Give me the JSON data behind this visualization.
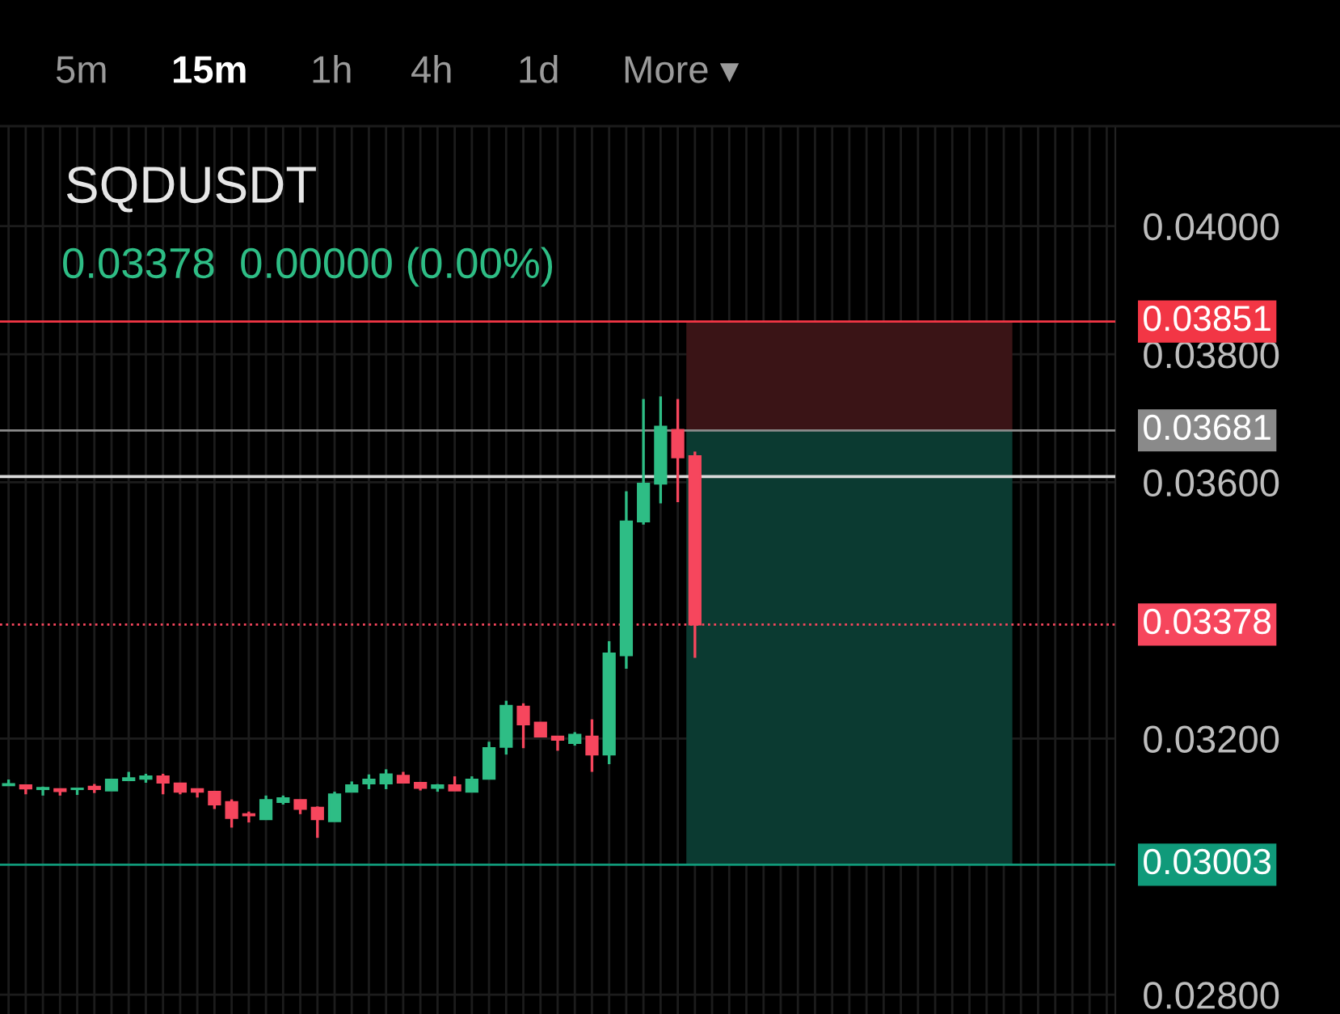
{
  "chart_data": {
    "type": "candlestick",
    "title": "SQDUSDT",
    "subtitle": "0.03378  0.00000 (0.00%)",
    "annotations": [
      "5m",
      "15m",
      "1h",
      "4h",
      "1d",
      "More ▾"
    ],
    "categories": [
      null,
      null,
      null,
      null,
      null,
      null,
      null,
      null,
      null,
      null,
      null,
      null,
      null,
      null,
      null,
      null,
      null,
      null,
      null,
      null,
      null,
      null,
      null,
      null,
      null,
      null,
      null,
      null,
      null,
      null,
      null,
      null,
      null,
      null,
      null,
      null,
      null,
      null,
      null,
      null,
      null,
      null,
      null,
      null,
      null,
      null,
      null,
      null,
      null,
      null,
      null,
      null,
      null,
      null,
      null,
      null,
      null,
      null,
      null,
      null,
      null,
      null,
      null,
      null,
      null
    ],
    "ohlc": [
      [
        0.03127,
        0.03136,
        0.03126,
        0.03129
      ],
      [
        0.03127,
        0.03128,
        0.03113,
        0.03122
      ],
      [
        0.03121,
        0.03125,
        0.03111,
        0.03123
      ],
      [
        0.03121,
        0.03121,
        0.03111,
        0.03118
      ],
      [
        0.03121,
        0.03122,
        0.03112,
        0.03122
      ],
      [
        0.03125,
        0.03129,
        0.03115,
        0.03121
      ],
      [
        0.03119,
        0.03136,
        0.03119,
        0.03136
      ],
      [
        0.03135,
        0.03148,
        0.03135,
        0.03138
      ],
      [
        0.03137,
        0.03145,
        0.03131,
        0.03141
      ],
      [
        0.03141,
        0.03145,
        0.03113,
        0.03131
      ],
      [
        0.0313,
        0.0313,
        0.03113,
        0.03117
      ],
      [
        0.03121,
        0.03122,
        0.03108,
        0.03117
      ],
      [
        0.03117,
        0.03117,
        0.0309,
        0.03097
      ],
      [
        0.03101,
        0.03105,
        0.03061,
        0.03076
      ],
      [
        0.03082,
        0.03086,
        0.03069,
        0.0308
      ],
      [
        0.03074,
        0.03111,
        0.03074,
        0.03104
      ],
      [
        0.03101,
        0.03111,
        0.03097,
        0.03107
      ],
      [
        0.03104,
        0.03104,
        0.03082,
        0.0309
      ],
      [
        0.03092,
        0.03094,
        0.03045,
        0.03074
      ],
      [
        0.03071,
        0.03117,
        0.03071,
        0.03113
      ],
      [
        0.03117,
        0.03133,
        0.03117,
        0.03127
      ],
      [
        0.0313,
        0.03144,
        0.03121,
        0.03136
      ],
      [
        0.0313,
        0.03152,
        0.03121,
        0.03144
      ],
      [
        0.03142,
        0.03148,
        0.03131,
        0.03131
      ],
      [
        0.03131,
        0.03131,
        0.03119,
        0.03123
      ],
      [
        0.03123,
        0.03129,
        0.03117,
        0.03127
      ],
      [
        0.03127,
        0.03141,
        0.03119,
        0.03119
      ],
      [
        0.03117,
        0.03141,
        0.03117,
        0.03136
      ],
      [
        0.03137,
        0.03195,
        0.03137,
        0.03185
      ],
      [
        0.03187,
        0.03259,
        0.03175,
        0.03251
      ],
      [
        0.0325,
        0.03255,
        0.03185,
        0.03222
      ],
      [
        0.03225,
        0.03225,
        0.03202,
        0.03203
      ],
      [
        0.03203,
        0.03203,
        0.03181,
        0.03198
      ],
      [
        0.03193,
        0.0321,
        0.03189,
        0.03206
      ],
      [
        0.03203,
        0.0323,
        0.03148,
        0.03175
      ],
      [
        0.03175,
        0.03352,
        0.0316,
        0.03333
      ],
      [
        0.0333,
        0.03586,
        0.03309,
        0.03539
      ],
      [
        0.03539,
        0.0373,
        0.03534,
        0.03598
      ],
      [
        0.03598,
        0.03734,
        0.03567,
        0.03687
      ],
      [
        0.03682,
        0.0373,
        0.03569,
        0.03639
      ],
      [
        0.03641,
        0.03648,
        0.03326,
        0.03378
      ],
      null,
      null,
      null,
      null,
      null,
      null,
      null,
      null,
      null,
      null,
      null,
      null,
      null,
      null,
      null,
      null,
      null,
      null,
      null,
      null,
      null,
      null,
      null,
      null
    ],
    "ylim": [
      0.0277,
      0.04156
    ],
    "yticks": [
      {
        "value": 0.04,
        "label": "0.04000"
      },
      {
        "value": 0.038,
        "label": "0.03800"
      },
      {
        "value": 0.036,
        "label": "0.03600"
      },
      {
        "value": 0.032,
        "label": "0.03200"
      },
      {
        "value": 0.028,
        "label": "0.02800"
      }
    ],
    "ref_lines": [
      {
        "axis": "y",
        "value": 0.03851,
        "label": "0.03851",
        "color": "#f23645"
      },
      {
        "axis": "y",
        "value": 0.03681,
        "label": "0.03681",
        "color": "#8a8a8a"
      },
      {
        "axis": "y",
        "value": 0.03378,
        "label": "0.03378",
        "color": "#f6465d",
        "line_style": "dotted"
      },
      {
        "axis": "y",
        "value": 0.03003,
        "label": "0.03003",
        "color": "#109a7a"
      },
      {
        "axis": "y",
        "value": 0.03609,
        "color": "#d9d9d9"
      }
    ],
    "bands": [
      {
        "axis": "y",
        "from": 0.03681,
        "to": 0.03851,
        "color": "#3a1416"
      },
      {
        "axis": "y",
        "from": 0.03003,
        "to": 0.03681,
        "color": "#0b3a31"
      }
    ],
    "grid": true,
    "legend": false
  }
}
